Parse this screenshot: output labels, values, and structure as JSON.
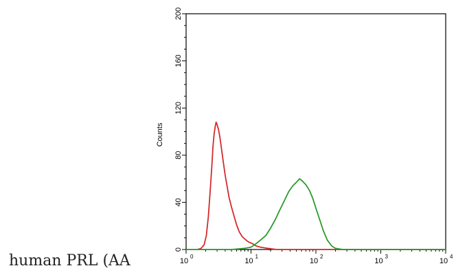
{
  "caption": "human PRL (AA",
  "chart_data": {
    "type": "line",
    "title": "",
    "xlabel": "",
    "ylabel": "Counts",
    "x_scale": "log",
    "xlim": [
      1,
      10000
    ],
    "ylim": [
      0,
      200
    ],
    "x_ticks": [
      {
        "base": "10",
        "exp": "0",
        "value": 1
      },
      {
        "base": "10",
        "exp": "1",
        "value": 10
      },
      {
        "base": "10",
        "exp": "2",
        "value": 100
      },
      {
        "base": "10",
        "exp": "3",
        "value": 1000
      },
      {
        "base": "10",
        "exp": "4",
        "value": 10000
      }
    ],
    "y_ticks": [
      "0",
      "40",
      "80",
      "120",
      "160",
      "200"
    ],
    "grid": false,
    "series": [
      {
        "color": "#d42a2a",
        "points": [
          [
            1.5,
            0
          ],
          [
            1.7,
            1
          ],
          [
            1.9,
            4
          ],
          [
            2.05,
            12
          ],
          [
            2.2,
            28
          ],
          [
            2.35,
            50
          ],
          [
            2.5,
            72
          ],
          [
            2.6,
            88
          ],
          [
            2.7,
            98
          ],
          [
            2.8,
            104
          ],
          [
            2.9,
            108
          ],
          [
            3.0,
            106
          ],
          [
            3.15,
            102
          ],
          [
            3.3,
            96
          ],
          [
            3.5,
            86
          ],
          [
            3.75,
            74
          ],
          [
            4.0,
            63
          ],
          [
            4.3,
            53
          ],
          [
            4.6,
            44
          ],
          [
            5.0,
            36
          ],
          [
            5.5,
            28
          ],
          [
            6.0,
            21
          ],
          [
            6.6,
            15
          ],
          [
            7.3,
            11
          ],
          [
            8.0,
            9
          ],
          [
            8.8,
            7
          ],
          [
            9.5,
            6
          ],
          [
            10.5,
            5
          ],
          [
            12,
            3
          ],
          [
            14,
            2
          ],
          [
            18,
            1
          ],
          [
            25,
            0
          ],
          [
            10000,
            0
          ]
        ]
      },
      {
        "color": "#2a9a2a",
        "points": [
          [
            1,
            0
          ],
          [
            5,
            0
          ],
          [
            8,
            1
          ],
          [
            10,
            2
          ],
          [
            12,
            5
          ],
          [
            14,
            8
          ],
          [
            17,
            12
          ],
          [
            20,
            18
          ],
          [
            24,
            26
          ],
          [
            28,
            34
          ],
          [
            33,
            42
          ],
          [
            38,
            49
          ],
          [
            44,
            54
          ],
          [
            50,
            57
          ],
          [
            56,
            60
          ],
          [
            62,
            58
          ],
          [
            70,
            55
          ],
          [
            80,
            50
          ],
          [
            90,
            43
          ],
          [
            100,
            35
          ],
          [
            115,
            25
          ],
          [
            130,
            16
          ],
          [
            150,
            8
          ],
          [
            175,
            3
          ],
          [
            200,
            1
          ],
          [
            260,
            0
          ],
          [
            10000,
            0
          ]
        ]
      }
    ]
  }
}
